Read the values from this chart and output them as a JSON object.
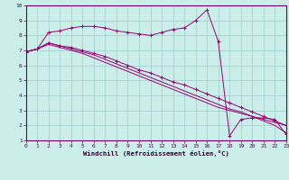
{
  "xlabel": "Windchill (Refroidissement éolien,°C)",
  "xlim": [
    0,
    23
  ],
  "ylim": [
    1,
    10
  ],
  "xticks": [
    0,
    1,
    2,
    3,
    4,
    5,
    6,
    7,
    8,
    9,
    10,
    11,
    12,
    13,
    14,
    15,
    16,
    17,
    18,
    19,
    20,
    21,
    22,
    23
  ],
  "yticks": [
    1,
    2,
    3,
    4,
    5,
    6,
    7,
    8,
    9,
    10
  ],
  "bg_color": "#cceee8",
  "line_color": "#990077",
  "grid_color": "#99cccc",
  "lines": [
    {
      "x": [
        0,
        1,
        2,
        3,
        4,
        5,
        6,
        7,
        8,
        9,
        10,
        11,
        12,
        13,
        14,
        15,
        16,
        17,
        18,
        19,
        20,
        21,
        22,
        23
      ],
      "y": [
        6.9,
        7.1,
        8.2,
        8.3,
        8.5,
        8.6,
        8.6,
        8.5,
        8.3,
        8.2,
        8.1,
        8.0,
        8.2,
        8.4,
        8.5,
        9.0,
        9.7,
        7.6,
        1.3,
        2.4,
        2.5,
        2.5,
        2.4,
        1.4
      ],
      "marker": true
    },
    {
      "x": [
        0,
        1,
        2,
        3,
        4,
        5,
        6,
        7,
        8,
        9,
        10,
        11,
        12,
        13,
        14,
        15,
        16,
        17,
        18,
        19,
        20,
        21,
        22,
        23
      ],
      "y": [
        6.9,
        7.1,
        7.5,
        7.3,
        7.2,
        7.0,
        6.8,
        6.6,
        6.3,
        6.0,
        5.7,
        5.5,
        5.2,
        4.9,
        4.7,
        4.4,
        4.1,
        3.8,
        3.5,
        3.2,
        2.9,
        2.6,
        2.3,
        2.0
      ],
      "marker": true
    },
    {
      "x": [
        0,
        1,
        2,
        3,
        4,
        5,
        6,
        7,
        8,
        9,
        10,
        11,
        12,
        13,
        14,
        15,
        16,
        17,
        18,
        19,
        20,
        21,
        22,
        23
      ],
      "y": [
        6.9,
        7.1,
        7.5,
        7.3,
        7.1,
        6.9,
        6.7,
        6.4,
        6.1,
        5.8,
        5.5,
        5.2,
        4.9,
        4.6,
        4.3,
        4.0,
        3.7,
        3.4,
        3.1,
        2.9,
        2.6,
        2.3,
        2.0,
        1.5
      ],
      "marker": false
    },
    {
      "x": [
        0,
        1,
        2,
        3,
        4,
        5,
        6,
        7,
        8,
        9,
        10,
        11,
        12,
        13,
        14,
        15,
        16,
        17,
        18,
        19,
        20,
        21,
        22,
        23
      ],
      "y": [
        6.9,
        7.1,
        7.4,
        7.2,
        7.0,
        6.8,
        6.5,
        6.2,
        5.9,
        5.6,
        5.3,
        5.0,
        4.7,
        4.4,
        4.1,
        3.8,
        3.5,
        3.2,
        3.0,
        2.8,
        2.6,
        2.4,
        2.2,
        2.0
      ],
      "marker": false
    }
  ]
}
